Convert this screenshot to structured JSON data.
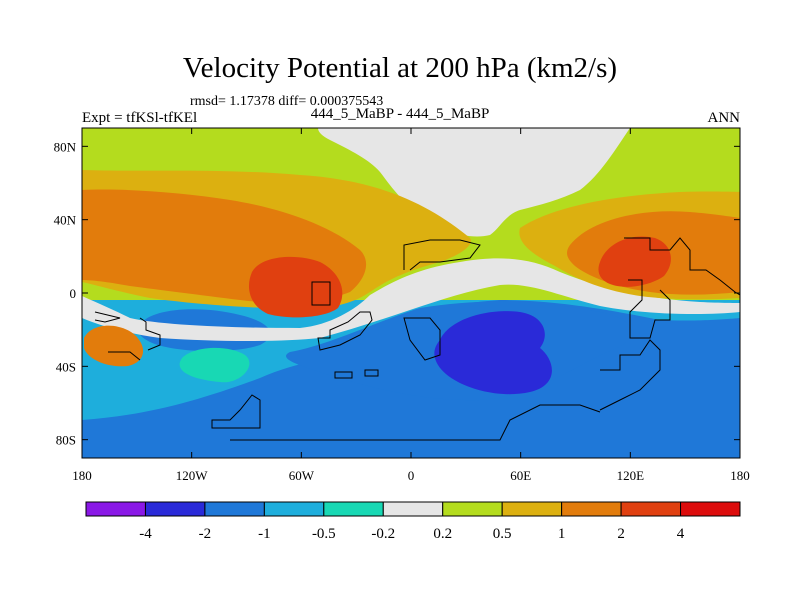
{
  "chart_data": {
    "type": "contour-map",
    "title": "Velocity Potential at 200 hPa (km2/s)",
    "stats": "rmsd= 1.17378 diff= 0.000375543",
    "left_label": "Expt = tfKSl-tfKEl",
    "center_label": "444_5_MaBP - 444_5_MaBP",
    "right_label": "ANN",
    "x_ticks": [
      "180",
      "120W",
      "60W",
      "0",
      "60E",
      "120E",
      "180"
    ],
    "y_ticks": [
      "80N",
      "40N",
      "0",
      "40S",
      "80S"
    ],
    "xlim": [
      -180,
      180
    ],
    "ylim": [
      -90,
      90
    ],
    "colorbar": {
      "labels": [
        "-4",
        "-2",
        "-1",
        "-0.5",
        "-0.2",
        "0.2",
        "0.5",
        "1",
        "2",
        "4"
      ],
      "colors": [
        "#8a18e6",
        "#2a2ad8",
        "#1f78d8",
        "#1eaedc",
        "#18d8b4",
        "#e6e6e6",
        "#b4dc1e",
        "#dcb010",
        "#e27c0c",
        "#e04010",
        "#dc0c0c"
      ]
    },
    "regions": [
      {
        "name": "tropical-eastern-pacific-max",
        "level": "2 to 4",
        "center": [
          -60,
          5
        ]
      },
      {
        "name": "western-pacific-max",
        "level": "2 to 4",
        "center": [
          125,
          20
        ]
      },
      {
        "name": "southern-ocean-indian-min",
        "level": "-4 to -2",
        "center": [
          55,
          -30
        ]
      },
      {
        "name": "arctic-near-zero",
        "level": "-0.2 to 0.2",
        "center": [
          30,
          85
        ]
      }
    ]
  },
  "colors": {
    "c_m4": "#8a18e6",
    "c_m2": "#2a2ad8",
    "c_m1": "#1f78d8",
    "c_m05": "#1eaedc",
    "c_m02": "#18d8b4",
    "c_zero": "#e6e6e6",
    "c_p02": "#b4dc1e",
    "c_p05": "#dcb010",
    "c_p1": "#e27c0c",
    "c_p2": "#e04010",
    "c_p4": "#dc0c0c"
  }
}
